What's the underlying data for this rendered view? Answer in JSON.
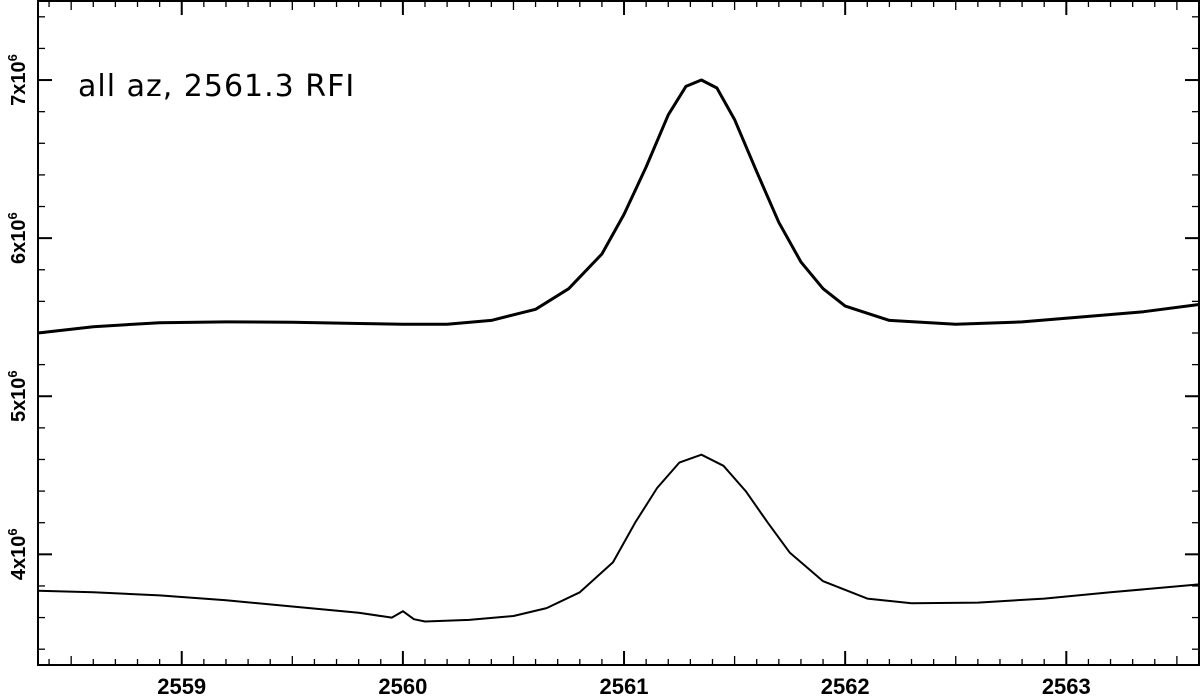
{
  "chart_data": {
    "type": "line",
    "title": "",
    "xlabel": "",
    "ylabel": "",
    "annotation": "all az, 2561.3 RFI",
    "xlim": [
      2558.35,
      2563.6
    ],
    "ylim": [
      3300000,
      7500000
    ],
    "x_ticks": [
      2559,
      2560,
      2561,
      2562,
      2563
    ],
    "x_tick_labels": [
      "2559",
      "2560",
      "2561",
      "2562",
      "2563"
    ],
    "y_ticks": [
      4000000,
      5000000,
      6000000,
      7000000
    ],
    "y_tick_labels": [
      {
        "base": "4x10",
        "exp": "6"
      },
      {
        "base": "5x10",
        "exp": "6"
      },
      {
        "base": "6x10",
        "exp": "6"
      },
      {
        "base": "7x10",
        "exp": "6"
      }
    ],
    "grid": false,
    "legend": "none",
    "series": [
      {
        "stroke": "#000000",
        "x": [
          2558.35,
          2558.6,
          2558.9,
          2559.2,
          2559.5,
          2559.8,
          2560.0,
          2560.2,
          2560.4,
          2560.6,
          2560.75,
          2560.9,
          2561.0,
          2561.1,
          2561.2,
          2561.28,
          2561.35,
          2561.42,
          2561.5,
          2561.6,
          2561.7,
          2561.8,
          2561.9,
          2562.0,
          2562.2,
          2562.5,
          2562.8,
          2563.1,
          2563.35,
          2563.6
        ],
        "y": [
          5400000,
          5440000,
          5465000,
          5470000,
          5468000,
          5460000,
          5455000,
          5455000,
          5480000,
          5550000,
          5680000,
          5900000,
          6150000,
          6450000,
          6780000,
          6960000,
          7000000,
          6950000,
          6750000,
          6420000,
          6100000,
          5850000,
          5680000,
          5570000,
          5480000,
          5455000,
          5470000,
          5505000,
          5535000,
          5580000
        ]
      },
      {
        "stroke": "#000000",
        "x": [
          2558.35,
          2558.6,
          2558.9,
          2559.2,
          2559.5,
          2559.8,
          2559.95,
          2560.0,
          2560.05,
          2560.1,
          2560.3,
          2560.5,
          2560.65,
          2560.8,
          2560.95,
          2561.05,
          2561.15,
          2561.25,
          2561.35,
          2561.45,
          2561.55,
          2561.65,
          2561.75,
          2561.9,
          2562.1,
          2562.3,
          2562.6,
          2562.9,
          2563.2,
          2563.6
        ],
        "y": [
          3770000,
          3760000,
          3740000,
          3710000,
          3670000,
          3630000,
          3600000,
          3640000,
          3590000,
          3575000,
          3585000,
          3610000,
          3660000,
          3760000,
          3950000,
          4200000,
          4420000,
          4580000,
          4630000,
          4560000,
          4400000,
          4200000,
          4010000,
          3830000,
          3720000,
          3690000,
          3695000,
          3720000,
          3760000,
          3810000
        ]
      }
    ]
  }
}
